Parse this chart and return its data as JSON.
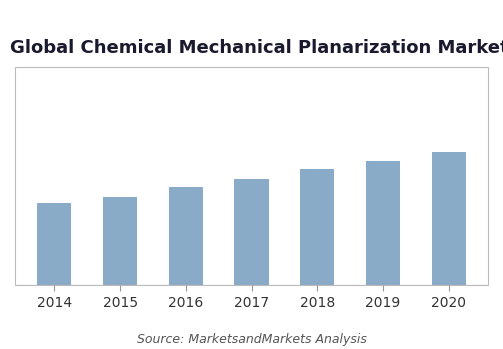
{
  "title": "Global Chemical Mechanical Planarization Market",
  "source_text": "Source: MarketsandMarkets Analysis",
  "years": [
    "2014",
    "2015",
    "2016",
    "2017",
    "2018",
    "2019",
    "2020"
  ],
  "values": [
    3.0,
    3.25,
    3.6,
    3.9,
    4.25,
    4.55,
    4.9
  ],
  "bar_color": "#8aabc8",
  "ylim": [
    0,
    8.0
  ],
  "background_color": "#ffffff",
  "title_fontsize": 13,
  "title_fontweight": "bold",
  "title_color": "#1a1a2e",
  "source_fontsize": 9,
  "source_color": "#555555",
  "tick_fontsize": 10,
  "tick_color": "#333333",
  "bar_width": 0.52,
  "border_color": "#bbbbbb",
  "bottom_spine_color": "#999999"
}
